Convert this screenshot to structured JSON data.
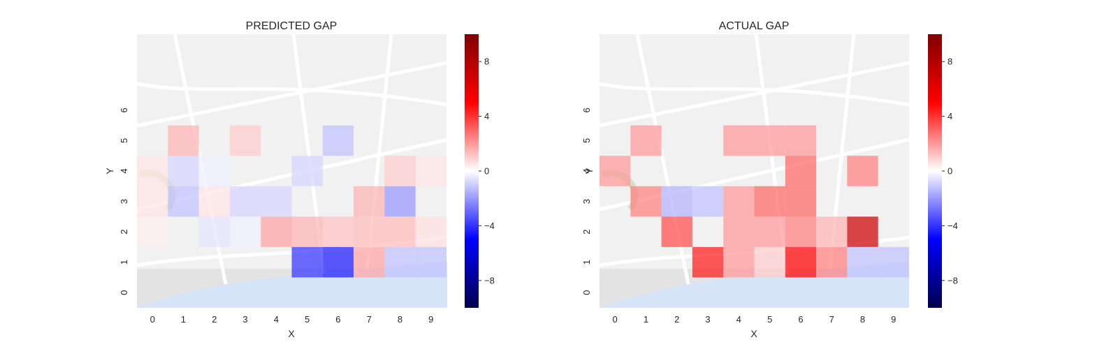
{
  "chart_data": [
    {
      "type": "heatmap",
      "title": "PREDICTED GAP",
      "xlabel": "X",
      "ylabel": "Y",
      "x_ticks": [
        "0",
        "1",
        "2",
        "3",
        "4",
        "5",
        "6",
        "7",
        "8",
        "9"
      ],
      "y_ticks": [
        "0",
        "1",
        "2",
        "3",
        "4",
        "5",
        "6"
      ],
      "grid": "10x9 cells over x 0-9, y 0-8; rows listed from top (y=8) to bottom (y=0)",
      "colormap": "seismic",
      "vmin": -10,
      "vmax": 10,
      "colorbar_ticks": [
        "8",
        "4",
        "0",
        "−4",
        "−8"
      ],
      "colorbar_tick_values": [
        8,
        4,
        0,
        -4,
        -8
      ],
      "background": "map tiles",
      "values": [
        [
          0,
          0,
          0,
          0,
          0,
          0,
          0,
          0,
          0,
          0
        ],
        [
          0,
          0,
          0,
          0,
          0,
          0,
          0,
          0,
          0,
          0
        ],
        [
          0,
          0,
          0,
          0,
          0,
          0,
          0,
          0,
          0,
          0
        ],
        [
          0,
          1.5,
          0,
          1,
          0,
          0,
          -1.2,
          0,
          0,
          0
        ],
        [
          0.5,
          -0.8,
          -0.3,
          0,
          0,
          -0.8,
          0,
          0,
          1,
          0.5
        ],
        [
          0.5,
          -1.2,
          0.5,
          -0.8,
          -0.8,
          0,
          0,
          1.5,
          -2,
          0
        ],
        [
          0.3,
          0,
          -0.5,
          -0.3,
          1.8,
          1.5,
          1.2,
          1.3,
          1.3,
          0.6
        ],
        [
          0,
          0,
          0,
          0,
          0,
          -4,
          -4.5,
          1.8,
          -1.2,
          -1.2
        ],
        [
          0,
          0,
          0,
          0,
          0,
          0,
          0,
          0,
          0,
          0
        ]
      ]
    },
    {
      "type": "heatmap",
      "title": "ACTUAL GAP",
      "xlabel": "X",
      "ylabel": "Y",
      "x_ticks": [
        "0",
        "1",
        "2",
        "3",
        "4",
        "5",
        "6",
        "7",
        "8",
        "9"
      ],
      "y_ticks": [
        "0",
        "1",
        "2",
        "3",
        "4",
        "5",
        "6"
      ],
      "grid": "10x9 cells over x 0-9, y 0-8; rows listed from top (y=8) to bottom (y=0)",
      "colormap": "seismic",
      "vmin": -10,
      "vmax": 10,
      "colorbar_ticks": [
        "8",
        "4",
        "0",
        "−4",
        "−8"
      ],
      "colorbar_tick_values": [
        8,
        4,
        0,
        -4,
        -8
      ],
      "background": "map tiles",
      "values": [
        [
          0,
          0,
          0,
          0,
          0,
          0,
          0,
          0,
          0,
          0
        ],
        [
          0,
          0,
          0,
          0,
          0,
          0,
          0,
          0,
          0,
          0
        ],
        [
          0,
          0,
          0,
          0,
          0,
          0,
          0,
          0,
          0,
          0
        ],
        [
          0,
          2,
          0,
          0,
          2,
          2,
          2,
          0,
          0,
          0
        ],
        [
          2,
          0,
          0,
          0,
          0,
          0,
          3,
          0,
          2.5,
          0
        ],
        [
          0,
          2.5,
          -1.5,
          -1.2,
          2,
          3,
          3,
          0,
          0,
          0
        ],
        [
          0,
          0,
          3.5,
          0,
          2,
          2,
          2.5,
          1.5,
          7,
          0
        ],
        [
          0,
          0,
          0,
          4.5,
          2,
          1,
          5,
          2.5,
          -1.2,
          -1.2
        ],
        [
          0,
          0,
          0,
          0,
          0,
          0,
          0,
          0,
          0,
          0
        ]
      ]
    }
  ]
}
